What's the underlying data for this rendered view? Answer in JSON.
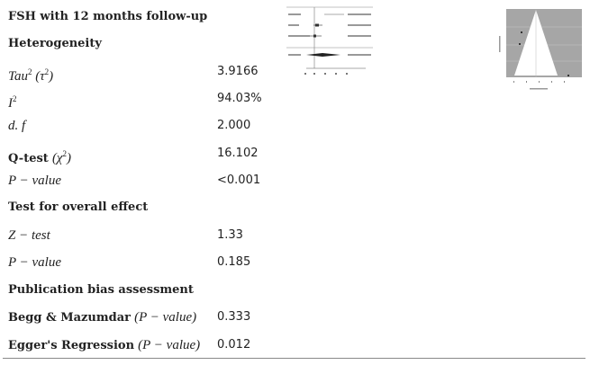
{
  "title": "FSH with 12 months follow-up",
  "sections": {
    "heterogeneity": "Heterogeneity",
    "overall": "Test for overall effect",
    "bias": "Publication bias assessment"
  },
  "rows": {
    "tau": {
      "label": "Tau",
      "label_paren": "(τ",
      "value": "3.9166"
    },
    "i2": {
      "label": "I",
      "value": "94.03%"
    },
    "df": {
      "label": "d. f",
      "value": "2.000"
    },
    "q": {
      "label": "Q-test",
      "label_paren": "(χ",
      "value": "16.102"
    },
    "p1": {
      "label": "P − value",
      "value": "<0.001"
    },
    "z": {
      "label": "Z − test",
      "value": "1.33"
    },
    "p2": {
      "label": "P − value",
      "value": "0.185"
    },
    "begg": {
      "label": "Begg & Mazumdar",
      "paren": "(P − value)",
      "value": "0.333"
    },
    "egger": {
      "label": "Egger's Regression",
      "paren": "(P − value)",
      "value": "0.012"
    }
  },
  "sup2": "2",
  "close_paren": ")",
  "figures": {
    "forest_plot": "forest-plot-thumbnail",
    "funnel_plot": "funnel-plot-thumbnail",
    "funnel_color": "#a6a6a6"
  }
}
